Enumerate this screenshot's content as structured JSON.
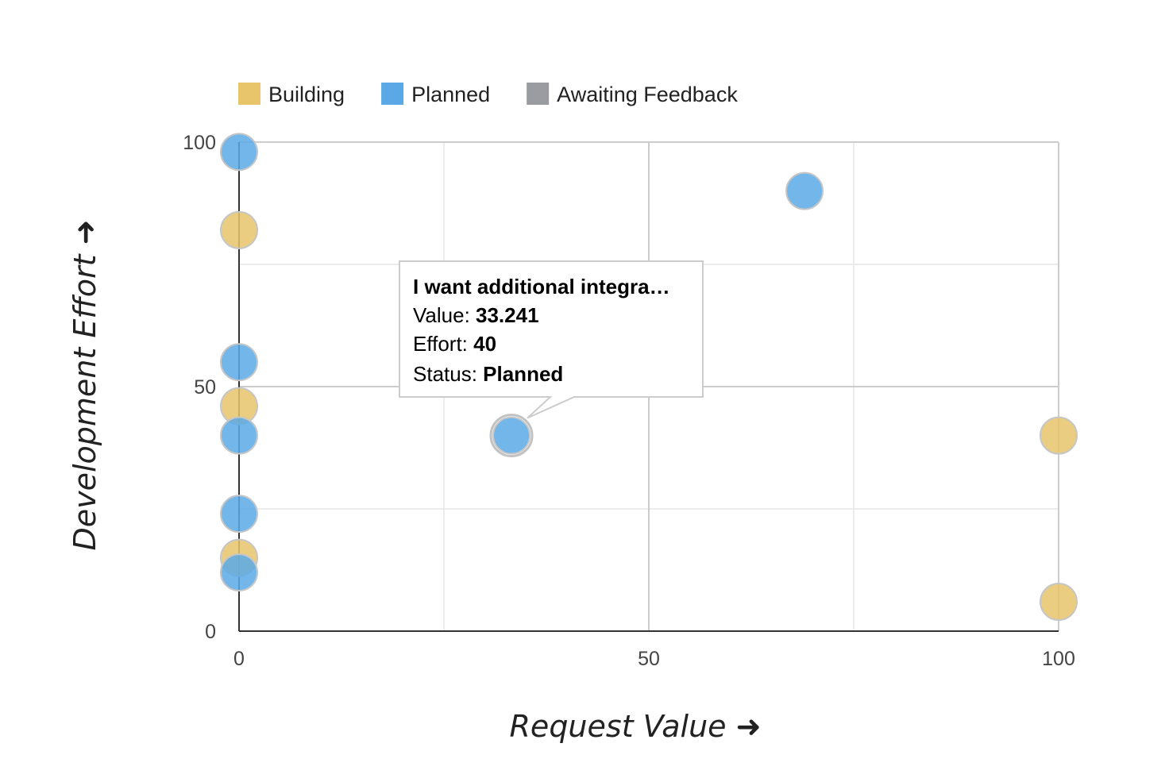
{
  "chart_data": {
    "type": "scatter",
    "xlabel": "Request Value",
    "ylabel": "Development Effort",
    "xlim": [
      0,
      100
    ],
    "ylim": [
      0,
      100
    ],
    "x_ticks": [
      "0",
      "50",
      "100"
    ],
    "y_ticks": [
      "0",
      "50",
      "100"
    ],
    "grid": true,
    "legend_position": "top",
    "series": [
      {
        "name": "Building",
        "color": "#E8C46B",
        "points": [
          {
            "x": 0,
            "y": 82
          },
          {
            "x": 0,
            "y": 46
          },
          {
            "x": 0,
            "y": 15
          },
          {
            "x": 100,
            "y": 40
          },
          {
            "x": 100,
            "y": 6
          }
        ]
      },
      {
        "name": "Planned",
        "color": "#5AA9E6",
        "points": [
          {
            "x": 0,
            "y": 98
          },
          {
            "x": 0,
            "y": 55
          },
          {
            "x": 0,
            "y": 40
          },
          {
            "x": 0,
            "y": 24
          },
          {
            "x": 0,
            "y": 12
          },
          {
            "x": 33.241,
            "y": 40
          },
          {
            "x": 69,
            "y": 90
          }
        ]
      },
      {
        "name": "Awaiting Feedback",
        "color": "#9A9CA1",
        "points": []
      }
    ],
    "tooltip": {
      "title": "I want additional integra…",
      "value_label": "Value: ",
      "value": "33.241",
      "effort_label": "Effort: ",
      "effort": "40",
      "status_label": "Status: ",
      "status": "Planned",
      "point": {
        "x": 33.241,
        "y": 40
      }
    }
  }
}
